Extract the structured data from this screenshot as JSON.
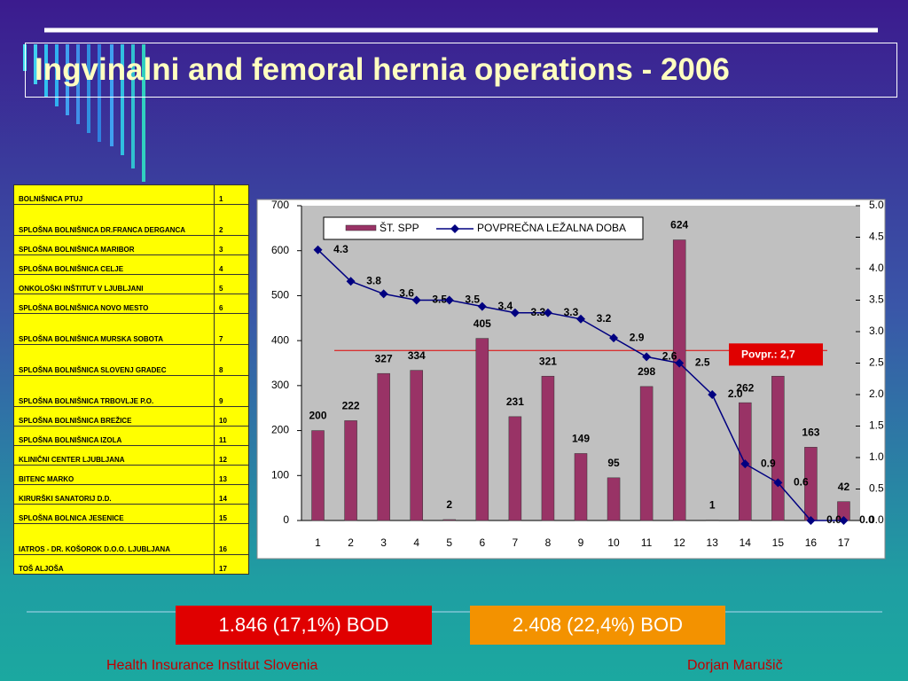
{
  "title": "Ingvinalni and femoral hernia operations - 2006",
  "table": {
    "rows": [
      [
        "BOLNIŠNICA PTUJ",
        1
      ],
      [
        "SPLOŠNA BOLNIŠNICA DR.FRANCA DERGANCA",
        2
      ],
      [
        "SPLOŠNA BOLNIŠNICA MARIBOR",
        3
      ],
      [
        "SPLOŠNA BOLNIŠNICA CELJE",
        4
      ],
      [
        "ONKOLOŠKI INŠTITUT V LJUBLJANI",
        5
      ],
      [
        "SPLOŠNA BOLNIŠNICA NOVO MESTO",
        6
      ],
      [
        "SPLOŠNA BOLNIŠNICA MURSKA SOBOTA",
        7
      ],
      [
        "SPLOŠNA BOLNIŠNICA SLOVENJ GRADEC",
        8
      ],
      [
        "SPLOŠNA BOLNIŠNICA TRBOVLJE P.O.",
        9
      ],
      [
        "SPLOŠNA BOLNIŠNICA BREŽICE",
        10
      ],
      [
        "SPLOŠNA BOLNIŠNICA IZOLA",
        11
      ],
      [
        "KLINIČNI CENTER LJUBLJANA",
        12
      ],
      [
        "BITENC MARKO",
        13
      ],
      [
        "KIRURŠKI SANATORIJ D.D.",
        14
      ],
      [
        "SPLOŠNA BOLNICA JESENICE",
        15
      ],
      [
        "IATROS - DR. KOŠOROK D.O.O. LJUBLJANA",
        16
      ],
      [
        "TOŠ ALJOŠA",
        17
      ]
    ]
  },
  "chart_data": {
    "type": "bar-line",
    "categories": [
      "1",
      "2",
      "3",
      "4",
      "5",
      "6",
      "7",
      "8",
      "9",
      "10",
      "11",
      "12",
      "13",
      "14",
      "15",
      "16",
      "17"
    ],
    "series": [
      {
        "name": "ŠT. SPP",
        "color": "#993366",
        "type": "bar",
        "values": [
          200,
          222,
          327,
          334,
          2,
          405,
          231,
          321,
          149,
          95,
          298,
          624,
          1,
          262,
          321,
          163,
          42
        ]
      },
      {
        "name": "POVPREČNA LEŽALNA DOBA",
        "color": "#000080",
        "type": "line",
        "axis": "y2",
        "values": [
          4.3,
          3.8,
          3.6,
          3.5,
          3.5,
          3.4,
          3.3,
          3.3,
          3.2,
          2.9,
          2.6,
          2.5,
          2.0,
          0.9,
          0.6,
          0.0,
          0.0
        ],
        "value_labels": [
          "4.3",
          "3.8",
          "3.6",
          "3.5",
          "3.5",
          "3.4",
          "3.3",
          "3.3",
          "3.2",
          "2.9",
          "2.6",
          "2.5",
          "2.0",
          "0.9",
          "0.6",
          "0.0",
          "0.0"
        ]
      }
    ],
    "ylim": [
      0,
      700
    ],
    "yticks": [
      0,
      100,
      200,
      300,
      400,
      500,
      600,
      700
    ],
    "y2lim": [
      0,
      5
    ],
    "y2ticks": [
      {
        "value": 0,
        "label": "0.0"
      },
      0.5,
      {
        "value": 1,
        "label": "1.0"
      },
      1.5,
      {
        "value": 2,
        "label": "2.0"
      },
      2.5,
      {
        "value": 3,
        "label": "3.0"
      },
      3.5,
      {
        "value": 4,
        "label": "4.0"
      },
      4.5,
      {
        "value": 5,
        "label": "5.0"
      }
    ],
    "average": {
      "value": 2.7,
      "label": "Povpr.: 2,7",
      "color": "#e00000"
    }
  },
  "boxes": [
    {
      "text": "1.846 (17,1%) BOD",
      "color": "#e00000"
    },
    {
      "text": "2.408 (22,4%) BOD",
      "color": "#f39200"
    }
  ],
  "footer": {
    "left": "Health Insurance Institut Slovenia",
    "right": "Dorjan Marušič"
  }
}
